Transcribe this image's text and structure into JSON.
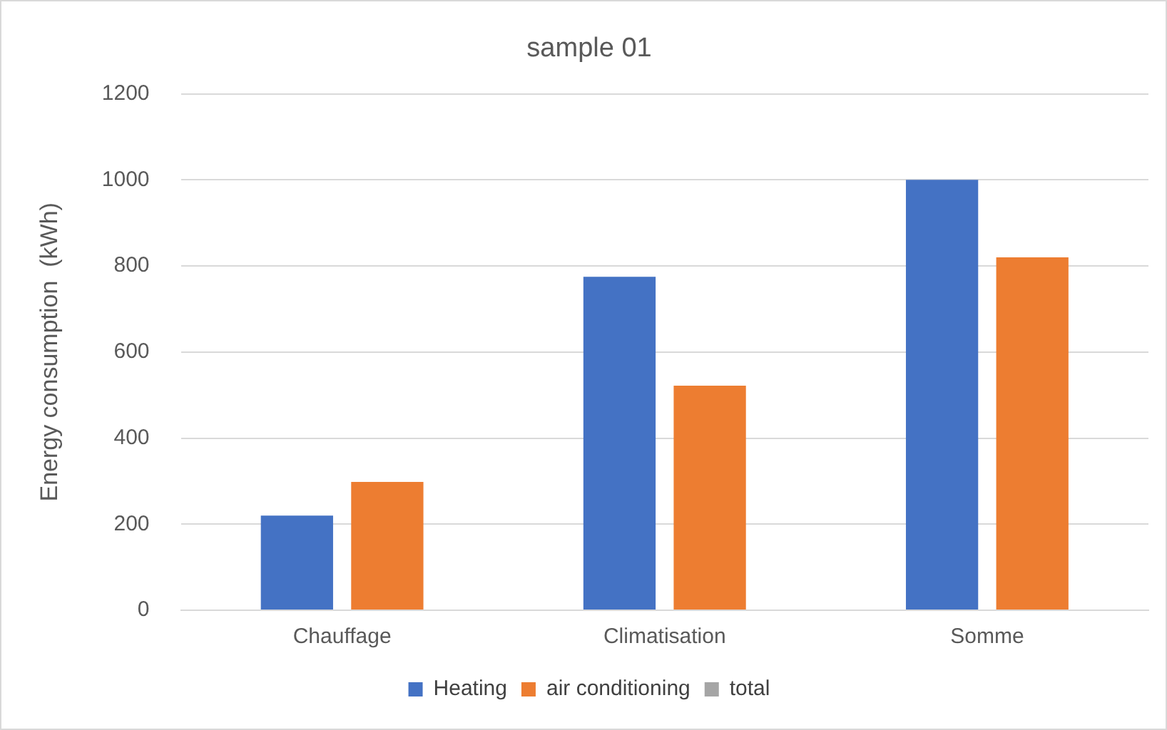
{
  "chart_data": {
    "type": "bar",
    "title": "sample 01",
    "ylabel": "Energy consumption  (kWh)",
    "categories": [
      "Chauffage",
      "Climatisation",
      "Somme"
    ],
    "series": [
      {
        "name": "Heating",
        "color": "#4472c4",
        "values": [
          220,
          775,
          1000
        ]
      },
      {
        "name": "air conditioning",
        "color": "#ed7d31",
        "values": [
          298,
          522,
          820
        ]
      },
      {
        "name": "total",
        "color": "#a5a5a5",
        "values": [
          null,
          null,
          null
        ]
      }
    ],
    "ylim": [
      0,
      1200
    ],
    "yticks": [
      0,
      200,
      400,
      600,
      800,
      1000,
      1200
    ],
    "grid": "y",
    "legend": "bottom"
  }
}
